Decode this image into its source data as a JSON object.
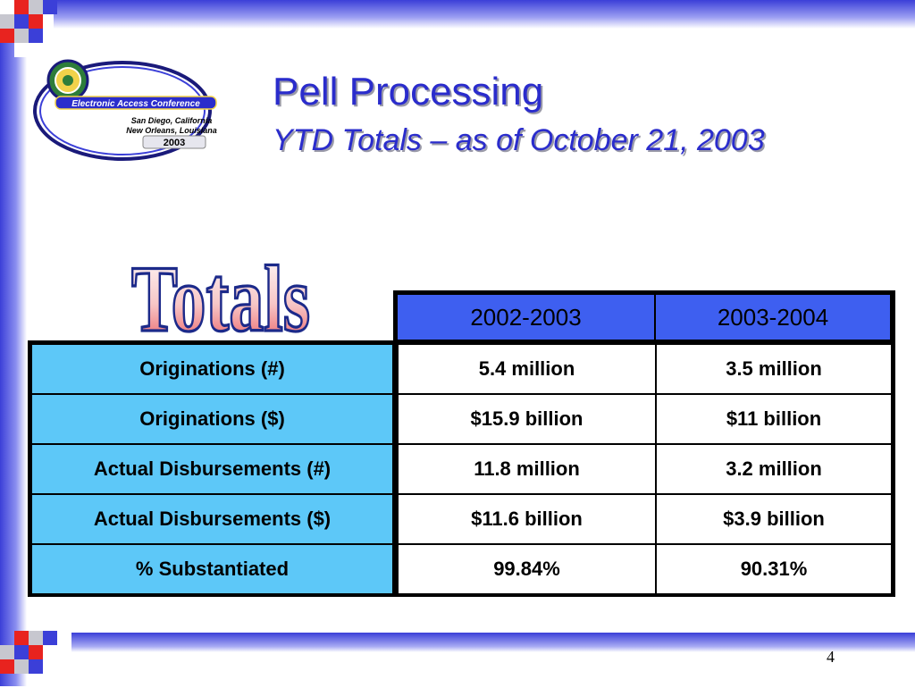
{
  "slide": {
    "title": "Pell Processing",
    "subtitle": "YTD Totals – as of October 21, 2003",
    "totals_art_text": "Totals",
    "page_number": "4"
  },
  "logo": {
    "banner_text": "Electronic Access Conference",
    "line1": "San Diego, California",
    "line2": "New Orleans, Louisiana",
    "year": "2003"
  },
  "table": {
    "columns": [
      "2002-2003",
      "2003-2004"
    ],
    "rows": [
      {
        "label": "Originations (#)",
        "v1": "5.4 million",
        "v2": "3.5 million"
      },
      {
        "label": "Originations ($)",
        "v1": "$15.9 billion",
        "v2": "$11 billion"
      },
      {
        "label": "Actual Disbursements (#)",
        "v1": "11.8 million",
        "v2": "3.2 million"
      },
      {
        "label": "Actual Disbursements ($)",
        "v1": "$11.6 billion",
        "v2": "$3.9 billion"
      },
      {
        "label": "% Substantiated",
        "v1": "99.84%",
        "v2": "90.31%"
      }
    ]
  },
  "colors": {
    "title": "#2a2ccc",
    "header_fill": "#3e5ff0",
    "label_fill": "#5dc8f8",
    "accent_red": "#e8231f",
    "accent_blue": "#3b3fd8"
  }
}
